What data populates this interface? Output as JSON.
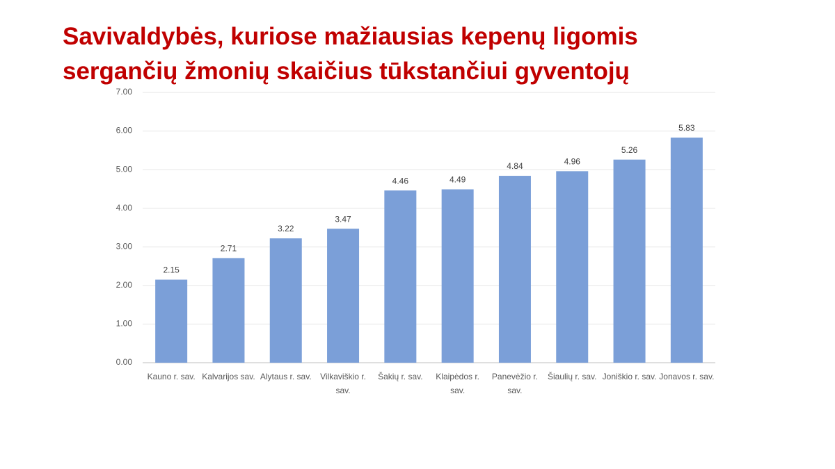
{
  "chart_data": {
    "type": "bar",
    "title": "Savivaldybės, kuriose mažiausias kepenų ligomis sergančių žmonių skaičius tūkstančiui gyventojų",
    "categories": [
      "Kauno r. sav.",
      "Kalvarijos sav.",
      "Alytaus r. sav.",
      "Vilkaviškio r. sav.",
      "Šakių r. sav.",
      "Klaipėdos r. sav.",
      "Panevėžio r. sav.",
      "Šiaulių r. sav.",
      "Joniškio r. sav.",
      "Jonavos r. sav."
    ],
    "values": [
      2.15,
      2.71,
      3.22,
      3.47,
      4.46,
      4.49,
      4.84,
      4.96,
      5.26,
      5.83
    ],
    "color": "#7b9fd8",
    "ylim": [
      0,
      7
    ],
    "yticks": [
      {
        "value": 0,
        "label": "0.00"
      },
      {
        "value": 1,
        "label": "1.00"
      },
      {
        "value": 2,
        "label": "2.00"
      },
      {
        "value": 3,
        "label": "3.00"
      },
      {
        "value": 4,
        "label": "4.00"
      },
      {
        "value": 5,
        "label": "5.00"
      },
      {
        "value": 6,
        "label": "6.00"
      },
      {
        "value": 7,
        "label": "7.00"
      }
    ],
    "grid": true
  }
}
